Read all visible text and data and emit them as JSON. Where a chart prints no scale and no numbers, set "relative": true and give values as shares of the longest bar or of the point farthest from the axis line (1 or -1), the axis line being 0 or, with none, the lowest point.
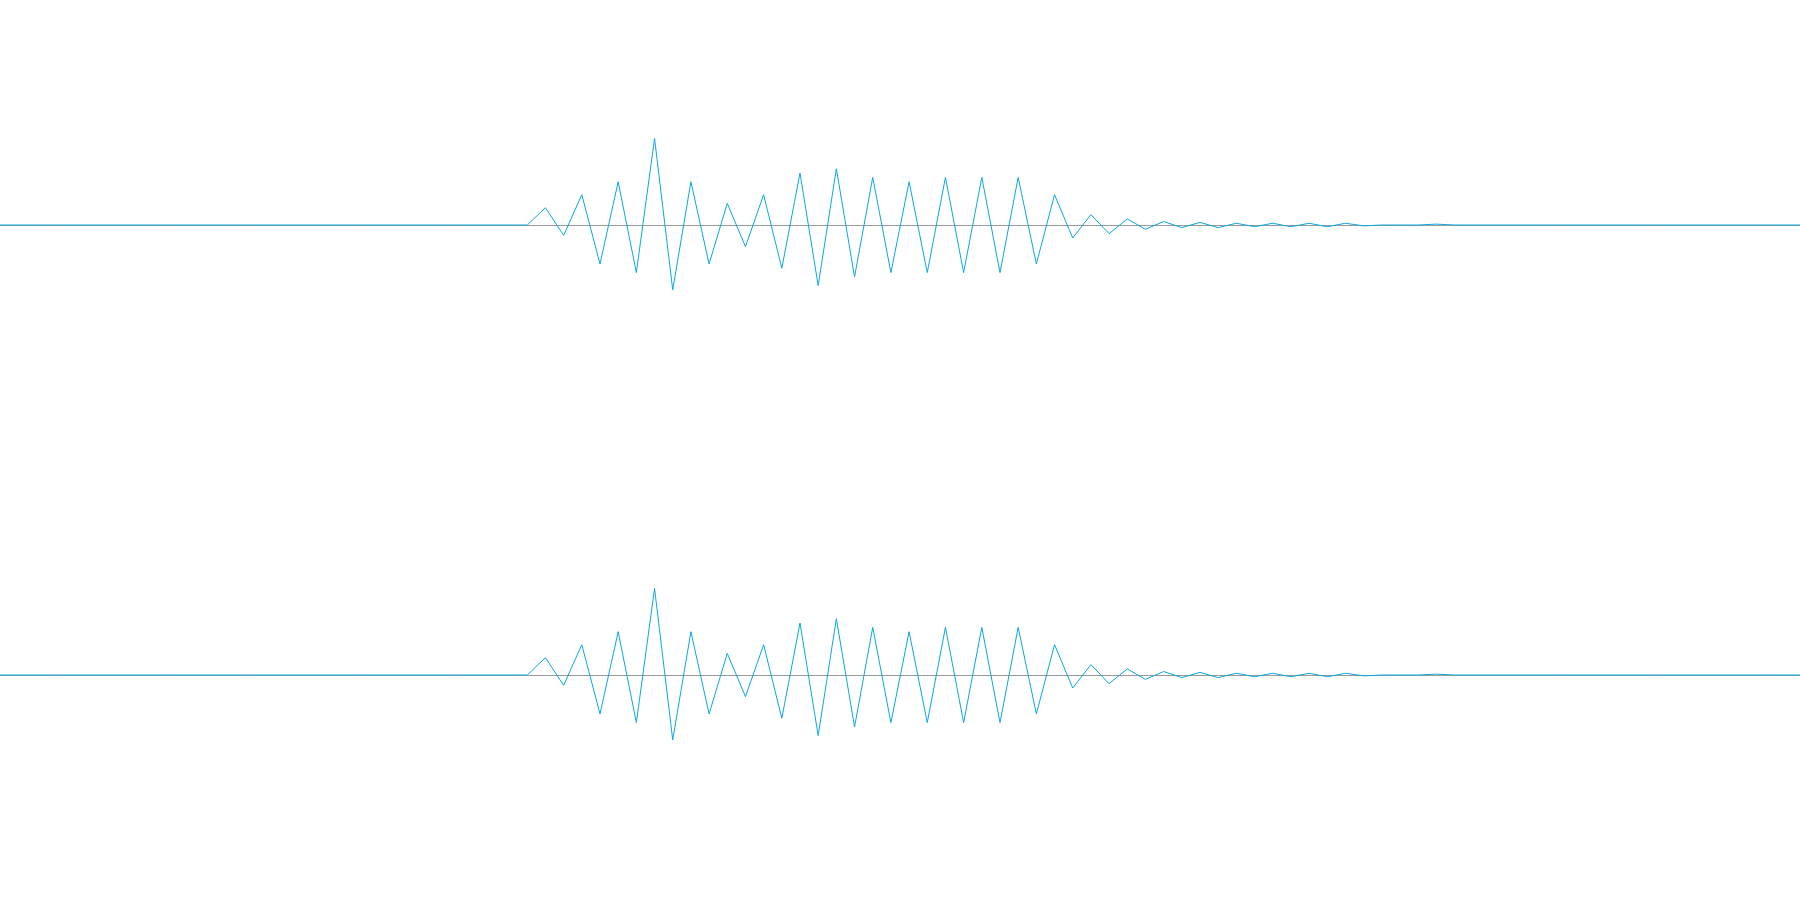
{
  "chart_data": [
    {
      "type": "line",
      "relative": true,
      "color": "#0aa7e0",
      "categories": [
        null,
        null,
        null,
        null,
        null,
        null,
        null,
        null,
        null,
        null,
        null,
        null,
        null,
        null,
        null,
        null,
        null,
        null,
        null,
        null,
        null,
        null,
        null,
        null,
        null,
        null,
        null,
        null,
        null,
        null,
        null,
        null,
        null,
        null,
        null,
        null,
        null,
        null,
        null,
        null,
        null,
        null,
        null,
        null,
        null,
        null,
        null,
        null,
        null,
        null,
        null,
        null,
        null,
        null,
        null,
        null,
        null,
        null,
        null,
        null,
        null,
        null,
        null,
        null,
        null,
        null,
        null,
        null,
        null,
        null,
        null,
        null,
        null,
        null,
        null,
        null,
        null,
        null,
        null,
        null,
        null,
        null,
        null,
        null,
        null,
        null,
        null,
        null,
        null,
        null,
        null,
        null,
        null,
        null,
        null,
        null,
        null,
        null,
        null,
        null
      ],
      "values": [
        0,
        0,
        0,
        0,
        0,
        0,
        0,
        0,
        0,
        0,
        0,
        0,
        0,
        0,
        0,
        0,
        0,
        0,
        0,
        0,
        0,
        0,
        0,
        0,
        0,
        0,
        0,
        0,
        0,
        0,
        0.2,
        -0.12,
        0.35,
        -0.45,
        0.5,
        -0.55,
        1,
        -0.75,
        0.5,
        -0.45,
        0.25,
        -0.25,
        0.35,
        -0.5,
        0.6,
        -0.7,
        0.65,
        -0.6,
        0.55,
        -0.55,
        0.5,
        -0.55,
        0.55,
        -0.55,
        0.55,
        -0.55,
        0.55,
        -0.45,
        0.35,
        -0.15,
        0.12,
        -0.1,
        0.07,
        -0.05,
        0.04,
        -0.03,
        0.03,
        -0.03,
        0.02,
        -0.02,
        0.02,
        -0.02,
        0.02,
        -0.02,
        0.02,
        -0.01,
        0,
        0,
        0,
        0.01,
        0,
        0,
        0,
        0,
        0,
        0,
        0,
        0,
        0,
        0,
        0,
        0,
        0,
        0,
        0,
        0,
        0,
        0,
        0,
        0
      ]
    },
    {
      "type": "line",
      "relative": true,
      "color": "#0aa7e0",
      "categories": [
        null,
        null,
        null,
        null,
        null,
        null,
        null,
        null,
        null,
        null,
        null,
        null,
        null,
        null,
        null,
        null,
        null,
        null,
        null,
        null,
        null,
        null,
        null,
        null,
        null,
        null,
        null,
        null,
        null,
        null,
        null,
        null,
        null,
        null,
        null,
        null,
        null,
        null,
        null,
        null,
        null,
        null,
        null,
        null,
        null,
        null,
        null,
        null,
        null,
        null,
        null,
        null,
        null,
        null,
        null,
        null,
        null,
        null,
        null,
        null,
        null,
        null,
        null,
        null,
        null,
        null,
        null,
        null,
        null,
        null,
        null,
        null,
        null,
        null,
        null,
        null,
        null,
        null,
        null,
        null,
        null,
        null,
        null,
        null,
        null,
        null,
        null,
        null,
        null,
        null,
        null,
        null,
        null,
        null,
        null,
        null,
        null,
        null,
        null,
        null
      ],
      "values": [
        0,
        0,
        0,
        0,
        0,
        0,
        0,
        0,
        0,
        0,
        0,
        0,
        0,
        0,
        0,
        0,
        0,
        0,
        0,
        0,
        0,
        0,
        0,
        0,
        0,
        0,
        0,
        0,
        0,
        0,
        0.2,
        -0.12,
        0.35,
        -0.45,
        0.5,
        -0.55,
        1,
        -0.75,
        0.5,
        -0.45,
        0.25,
        -0.25,
        0.35,
        -0.5,
        0.6,
        -0.7,
        0.65,
        -0.6,
        0.55,
        -0.55,
        0.5,
        -0.55,
        0.55,
        -0.55,
        0.55,
        -0.55,
        0.55,
        -0.45,
        0.35,
        -0.15,
        0.12,
        -0.1,
        0.07,
        -0.05,
        0.04,
        -0.03,
        0.03,
        -0.03,
        0.02,
        -0.02,
        0.02,
        -0.02,
        0.02,
        -0.02,
        0.02,
        -0.01,
        0,
        0,
        0,
        0.01,
        0,
        0,
        0,
        0,
        0,
        0,
        0,
        0,
        0,
        0,
        0,
        0,
        0,
        0,
        0,
        0,
        0,
        0,
        0,
        0
      ]
    }
  ]
}
